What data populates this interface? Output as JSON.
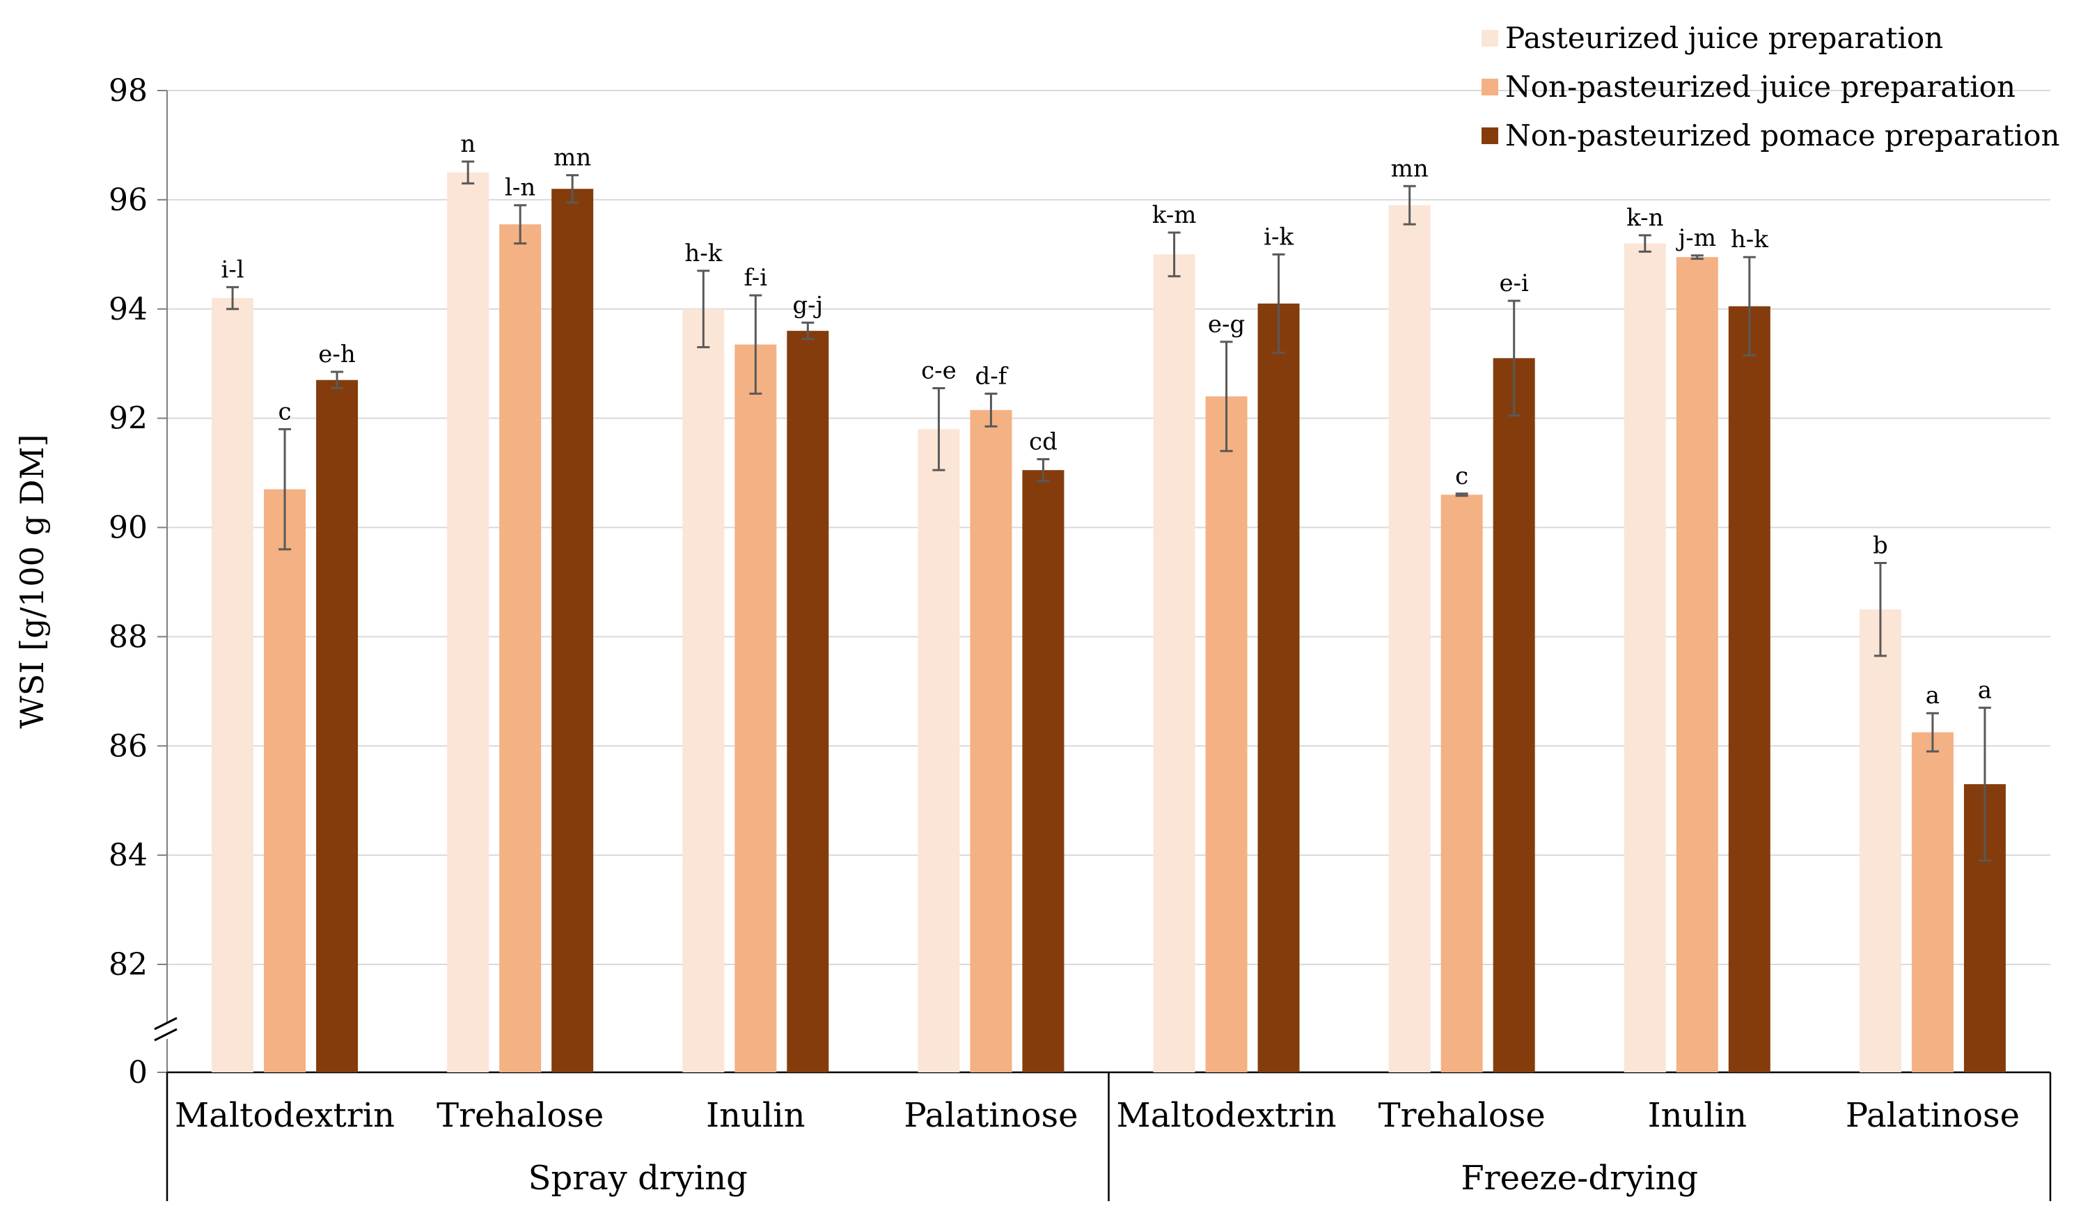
{
  "chart_data": {
    "type": "bar",
    "ylabel": "WSI [g/100 g DM]",
    "ylim": [
      82,
      98
    ],
    "y_axis_break": true,
    "yticks": [
      "98",
      "96",
      "94",
      "92",
      "90",
      "88",
      "86",
      "84",
      "82",
      "0"
    ],
    "grid": true,
    "legend_position": "top-right",
    "groups": [
      {
        "name": "Spray drying",
        "categories": [
          "Maltodextrin",
          "Trehalose",
          "Inulin",
          "Palatinose"
        ]
      },
      {
        "name": "Freeze-drying",
        "categories": [
          "Maltodextrin",
          "Trehalose",
          "Inulin",
          "Palatinose"
        ]
      }
    ],
    "series": [
      {
        "name": "Pasteurized juice preparation",
        "color": "#fbe5d6",
        "values": [
          94.2,
          96.5,
          94.0,
          91.8,
          95.0,
          95.9,
          95.2,
          88.5
        ],
        "errors": [
          0.2,
          0.2,
          0.7,
          0.75,
          0.4,
          0.35,
          0.15,
          0.85
        ],
        "labels": [
          "i-l",
          "n",
          "h-k",
          "c-e",
          "k-m",
          "mn",
          "k-n",
          "b"
        ]
      },
      {
        "name": "Non-pasteurized juice preparation",
        "color": "#f4b183",
        "values": [
          90.7,
          95.55,
          93.35,
          92.15,
          92.4,
          90.6,
          94.95,
          86.25
        ],
        "errors": [
          1.1,
          0.35,
          0.9,
          0.3,
          1.0,
          0.02,
          0.03,
          0.35
        ],
        "labels": [
          "c",
          "l-n",
          "f-i",
          "d-f",
          "e-g",
          "c",
          "j-m",
          "a"
        ]
      },
      {
        "name": "Non-pasteurized pomace preparation",
        "color": "#843c0c",
        "values": [
          92.7,
          96.2,
          93.6,
          91.05,
          94.1,
          93.1,
          94.05,
          85.3
        ],
        "errors": [
          0.15,
          0.25,
          0.15,
          0.2,
          0.9,
          1.05,
          0.9,
          1.4
        ],
        "labels": [
          "e-h",
          "mn",
          "g-j",
          "cd",
          "i-k",
          "e-i",
          "h-k",
          "a"
        ]
      }
    ]
  }
}
